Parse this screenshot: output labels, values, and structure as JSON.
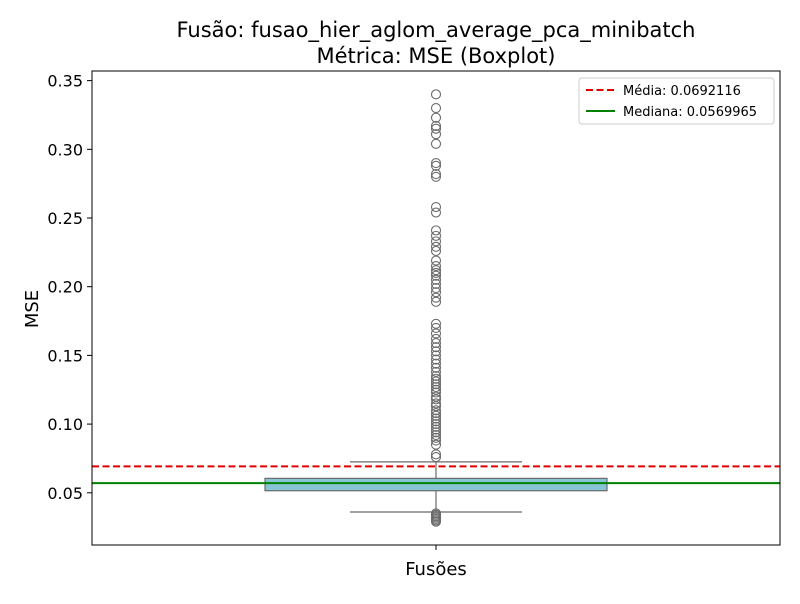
{
  "chart_data": {
    "type": "boxplot",
    "title_line1": "Fusão: fusao_hier_aglom_average_pca_minibatch",
    "title_line2": "Métrica: MSE (Boxplot)",
    "xlabel": "Fusões",
    "ylabel": "MSE",
    "ylim": [
      0.012,
      0.357
    ],
    "yticks": [
      0.05,
      0.1,
      0.15,
      0.2,
      0.25,
      0.3,
      0.35
    ],
    "ytick_labels": [
      "0.05",
      "0.10",
      "0.15",
      "0.20",
      "0.25",
      "0.30",
      "0.35"
    ],
    "box": {
      "q1": 0.0515,
      "q3": 0.0605,
      "median": 0.057,
      "whisker_low": 0.036,
      "whisker_high": 0.0725,
      "fill_color": "#87c5d6",
      "edge_color": "#6b6b6b"
    },
    "mean_line": {
      "value": 0.0692116,
      "label": "Média: 0.0692116",
      "color": "#e00000",
      "style": "dashed"
    },
    "median_line": {
      "value": 0.0569965,
      "label": "Mediana: 0.0569965",
      "color": "#008000",
      "style": "solid"
    },
    "legend_position": "top-right",
    "outliers_high": [
      0.076,
      0.078,
      0.085,
      0.088,
      0.09,
      0.092,
      0.094,
      0.096,
      0.098,
      0.1,
      0.102,
      0.104,
      0.106,
      0.108,
      0.11,
      0.113,
      0.115,
      0.118,
      0.12,
      0.123,
      0.125,
      0.127,
      0.129,
      0.131,
      0.133,
      0.135,
      0.138,
      0.141,
      0.144,
      0.147,
      0.15,
      0.153,
      0.156,
      0.159,
      0.162,
      0.166,
      0.17,
      0.173,
      0.189,
      0.192,
      0.196,
      0.199,
      0.202,
      0.205,
      0.208,
      0.21,
      0.212,
      0.215,
      0.219,
      0.226,
      0.229,
      0.233,
      0.237,
      0.241,
      0.254,
      0.258,
      0.28,
      0.282,
      0.288,
      0.29,
      0.304,
      0.311,
      0.315,
      0.317,
      0.323,
      0.33,
      0.34
    ],
    "outliers_low": [
      0.029,
      0.03,
      0.031,
      0.032,
      0.033,
      0.034,
      0.035
    ],
    "grid": false
  }
}
